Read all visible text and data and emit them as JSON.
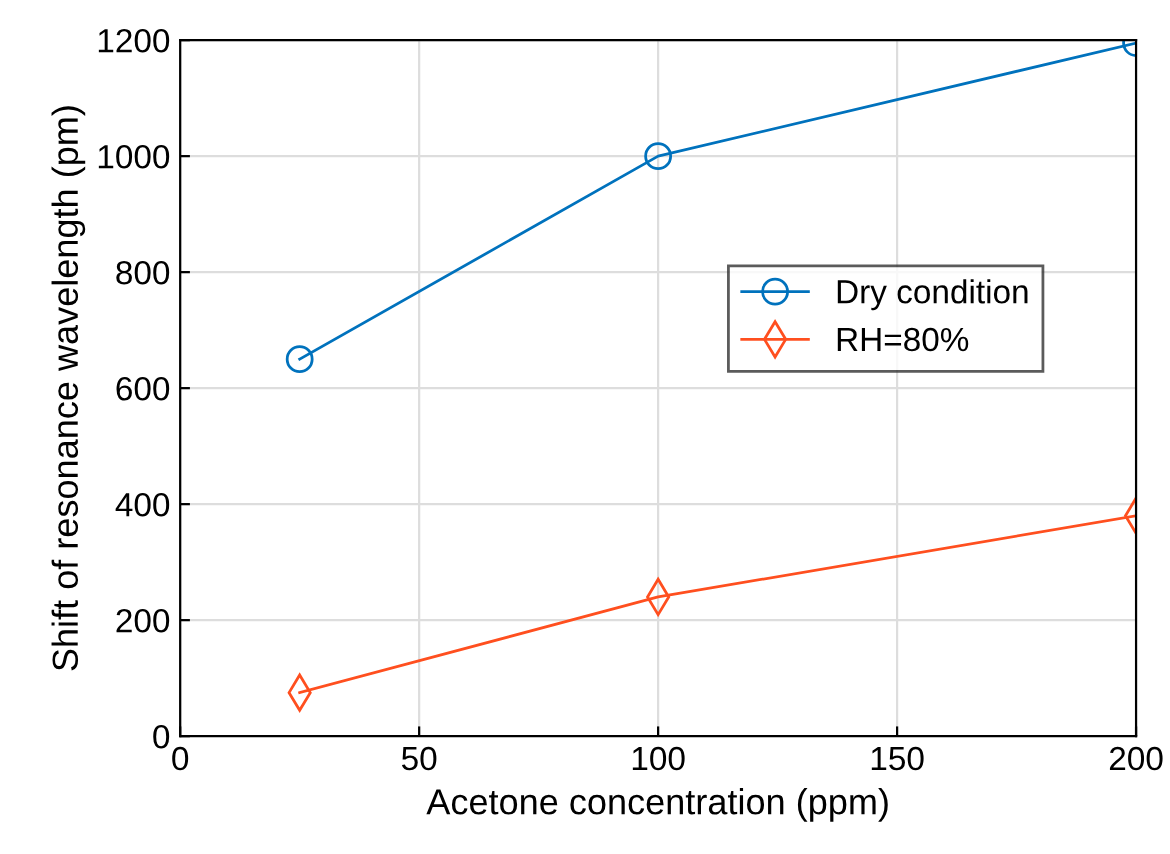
{
  "chart_data": {
    "type": "line",
    "xlabel": "Acetone concentration (ppm)",
    "ylabel": "Shift of resonance wavelength (pm)",
    "x": [
      25,
      100,
      200
    ],
    "series": [
      {
        "name": "Dry condition",
        "color": "#0072bd",
        "marker": "circle",
        "values": [
          650,
          1000,
          1195
        ]
      },
      {
        "name": "RH=80%",
        "color": "#ff4f1f",
        "marker": "diamond",
        "values": [
          75,
          240,
          380
        ]
      }
    ],
    "xlim": [
      0,
      200
    ],
    "xticks": [
      0,
      50,
      100,
      150,
      200
    ],
    "ylim": [
      0,
      1200
    ],
    "yticks": [
      0,
      200,
      400,
      600,
      800,
      1000,
      1200
    ],
    "grid": true,
    "legend": "right",
    "line_style": "solid"
  }
}
